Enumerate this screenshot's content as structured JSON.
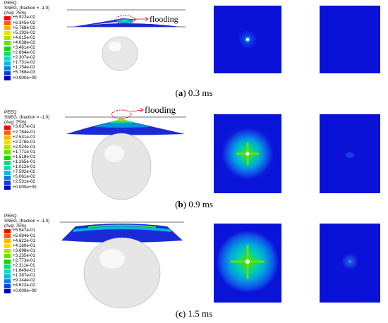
{
  "panels": [
    {
      "caption_letter": "a",
      "caption_time": "0.3 ms",
      "flood_label": "flooding",
      "legend": {
        "title": "PEEQ",
        "subtitle": "SNEG, (fraction = -1.0)",
        "avg": "(Avg: 75%)",
        "values": [
          "+6.922e-02",
          "+6.345e-02",
          "+5.768e-02",
          "+5.192e-02",
          "+4.615e-02",
          "+4.038e-02",
          "+3.461e-02",
          "+2.884e-02",
          "+2.307e-02",
          "+1.731e-02",
          "+1.154e-02",
          "+5.768e-03",
          "+0.000e+00"
        ]
      }
    },
    {
      "caption_letter": "b",
      "caption_time": "0.9 ms",
      "flood_label": "flooding",
      "legend": {
        "title": "PEEQ",
        "subtitle": "SNEG, (fraction = -1.0)",
        "avg": "(Avg: 75%)",
        "values": [
          "+3.037e-01",
          "+2.784e-01",
          "+2.531e-01",
          "+2.278e-01",
          "+2.024e-01",
          "+1.771e-01",
          "+1.518e-01",
          "+1.265e-01",
          "+1.012e-01",
          "+7.592e-02",
          "+5.061e-02",
          "+2.531e-02",
          "+0.000e+00"
        ]
      }
    },
    {
      "caption_letter": "c",
      "caption_time": "1.5 ms",
      "flood_label": "",
      "legend": {
        "title": "PEEQ",
        "subtitle": "SNEG, (fraction = -1.0)",
        "avg": "(Avg: 75%)",
        "values": [
          "+5.547e-01",
          "+5.084e-01",
          "+4.622e-01",
          "+4.160e-01",
          "+3.698e-01",
          "+3.235e-01",
          "+2.773e-01",
          "+2.311e-01",
          "+1.849e-01",
          "+1.387e-01",
          "+9.244e-02",
          "+4.622e-02",
          "+0.000e+00"
        ]
      }
    }
  ],
  "colormap": [
    "#ff0000",
    "#ff5a00",
    "#ffb400",
    "#f0e000",
    "#aee400",
    "#5ee800",
    "#10d800",
    "#00e070",
    "#00e0c0",
    "#00bce0",
    "#0080e8",
    "#0040e0",
    "#0000d0"
  ]
}
